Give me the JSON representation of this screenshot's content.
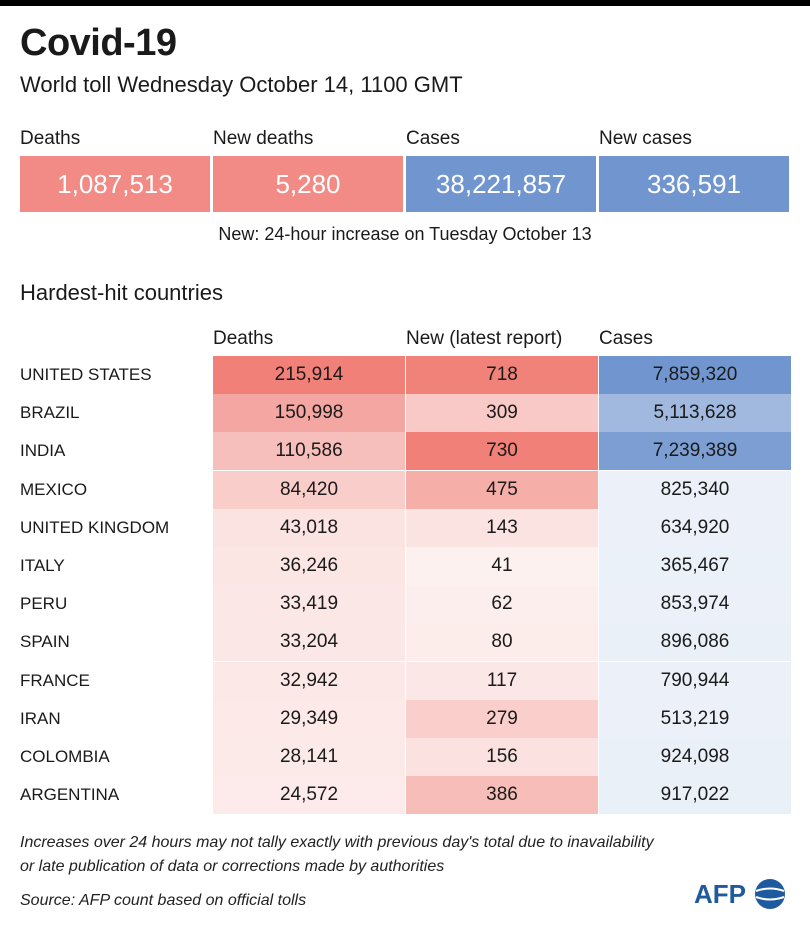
{
  "title": "Covid-19",
  "subtitle": "World toll Wednesday October 14, 1100 GMT",
  "summary": [
    {
      "label": "Deaths",
      "value": "1,087,513",
      "color": "#f28b85"
    },
    {
      "label": "New deaths",
      "value": "5,280",
      "color": "#f28b85"
    },
    {
      "label": "Cases",
      "value": "38,221,857",
      "color": "#7196cf"
    },
    {
      "label": "New cases",
      "value": "336,591",
      "color": "#7196cf"
    }
  ],
  "note": "New: 24-hour increase on Tuesday October 13",
  "section_title": "Hardest-hit countries",
  "chart_data": {
    "type": "table",
    "title": "Hardest-hit countries",
    "columns": [
      "Deaths",
      "New (latest report)",
      "Cases"
    ],
    "rows": [
      {
        "country": "UNITED STATES",
        "deaths": "215,914",
        "new": "718",
        "cases": "7,859,320"
      },
      {
        "country": "BRAZIL",
        "deaths": "150,998",
        "new": "309",
        "cases": "5,113,628"
      },
      {
        "country": "INDIA",
        "deaths": "110,586",
        "new": "730",
        "cases": "7,239,389"
      },
      {
        "country": "MEXICO",
        "deaths": "84,420",
        "new": "475",
        "cases": "825,340"
      },
      {
        "country": "UNITED KINGDOM",
        "deaths": "43,018",
        "new": "143",
        "cases": "634,920"
      },
      {
        "country": "ITALY",
        "deaths": "36,246",
        "new": "41",
        "cases": "365,467"
      },
      {
        "country": "PERU",
        "deaths": "33,419",
        "new": "62",
        "cases": "853,974"
      },
      {
        "country": "SPAIN",
        "deaths": "33,204",
        "new": "80",
        "cases": "896,086"
      },
      {
        "country": "FRANCE",
        "deaths": "32,942",
        "new": "117",
        "cases": "790,944"
      },
      {
        "country": "IRAN",
        "deaths": "29,349",
        "new": "279",
        "cases": "513,219"
      },
      {
        "country": "COLOMBIA",
        "deaths": "28,141",
        "new": "156",
        "cases": "924,098"
      },
      {
        "country": "ARGENTINA",
        "deaths": "24,572",
        "new": "386",
        "cases": "917,022"
      }
    ]
  },
  "footnote_1": "Increases over 24 hours may not tally exactly with previous day's total due to inavailability",
  "footnote_2": "or late publication of data or corrections made by authorities",
  "source": "Source: AFP count based on official tolls",
  "logo": "AFP",
  "colors": {
    "red": "#f28b85",
    "blue": "#7196cf"
  }
}
